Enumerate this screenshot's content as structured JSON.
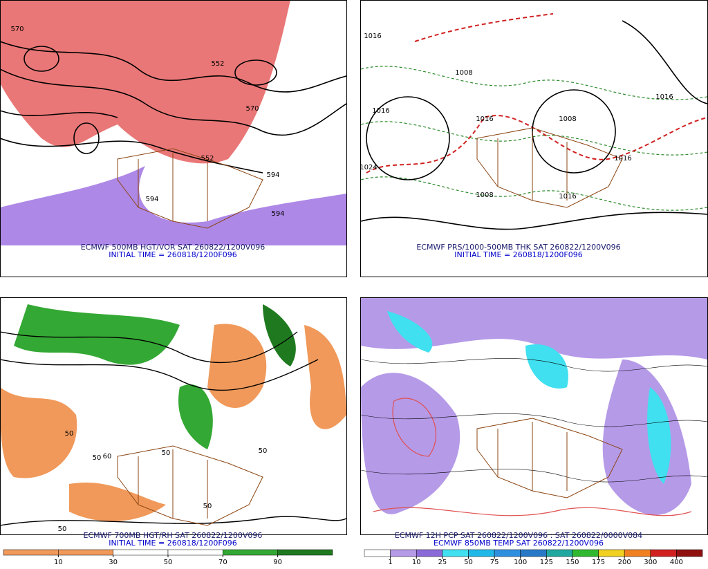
{
  "panels": [
    {
      "caption": "ECMWF 500MB HGT/VOR SAT 260822/1200V096",
      "subcaption": "INITIAL TIME = 260818/1200F096",
      "contour_labels": [
        "570",
        "552",
        "570",
        "552",
        "594",
        "594",
        "594"
      ]
    },
    {
      "caption": "ECMWF PRS/1000-500MB THK SAT 260822/1200V096",
      "subcaption": "INITIAL TIME = 260818/1200F096",
      "contour_labels": [
        "1016",
        "1016",
        "1008",
        "1016",
        "1008",
        "1024",
        "1016",
        "1016",
        "1008",
        "1016"
      ]
    },
    {
      "caption": "ECMWF 700MB HGT/RH SAT 260822/1200V096",
      "subcaption": "INITIAL TIME = 260818/1200F096",
      "contour_labels": [
        "50",
        "50",
        "60",
        "50",
        "50",
        "50",
        "50"
      ],
      "colorbar": {
        "labels": [
          "10",
          "30",
          "50",
          "70",
          "90"
        ],
        "colors": [
          "#f0995a",
          "#f0995a",
          "#ffffff",
          "#ffffff",
          "#34a834",
          "#1f7a1f"
        ]
      }
    },
    {
      "caption": "ECMWF 12H PCP SAT 260822/1200V096 : SAT 260822/0000V084",
      "subcaption": "ECMWF 850MB TEMP SAT 260822/1200V096",
      "colorbar": {
        "labels": [
          "1",
          "10",
          "25",
          "50",
          "75",
          "100",
          "125",
          "150",
          "175",
          "200",
          "300",
          "400"
        ],
        "colors": [
          "#ffffff",
          "#b59ae8",
          "#8a6ad8",
          "#40e0f0",
          "#20b8e8",
          "#3090e0",
          "#2878c8",
          "#20a8a0",
          "#30b830",
          "#f0d020",
          "#f08020",
          "#d02020",
          "#901010"
        ]
      }
    }
  ]
}
